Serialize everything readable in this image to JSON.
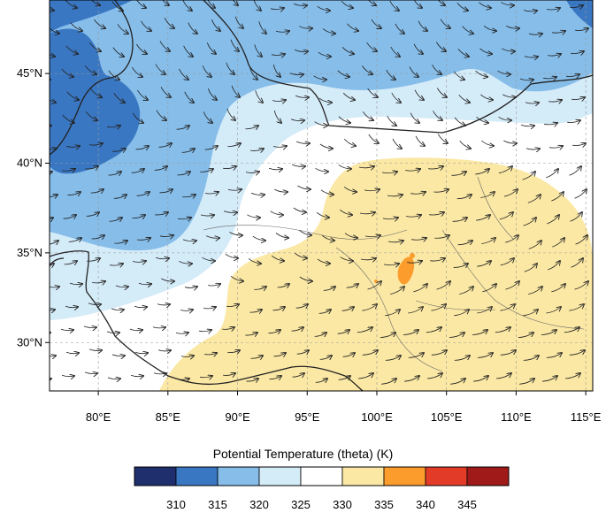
{
  "map": {
    "lat_labels": [
      "45°N",
      "40°N",
      "35°N",
      "30°N"
    ],
    "lon_labels": [
      "80°E",
      "85°E",
      "90°E",
      "95°E",
      "100°E",
      "105°E",
      "110°E",
      "115°E"
    ],
    "lon_values": [
      80,
      85,
      90,
      95,
      100,
      105,
      110,
      115
    ],
    "lat_values": [
      45,
      40,
      35,
      30
    ],
    "lon_range": [
      76.5,
      115.5
    ],
    "lat_range": [
      27.3,
      49.1
    ]
  },
  "colorbar": {
    "title": "Potential Temperature (theta)    (K)",
    "ticks": [
      "310",
      "315",
      "320",
      "325",
      "330",
      "335",
      "340",
      "345"
    ],
    "colors": [
      "#1f2f6e",
      "#3a77c2",
      "#86bde9",
      "#d4ebf8",
      "#ffffff",
      "#fbe8a4",
      "#fb9c2c",
      "#e23c28",
      "#a01a1a"
    ]
  }
}
